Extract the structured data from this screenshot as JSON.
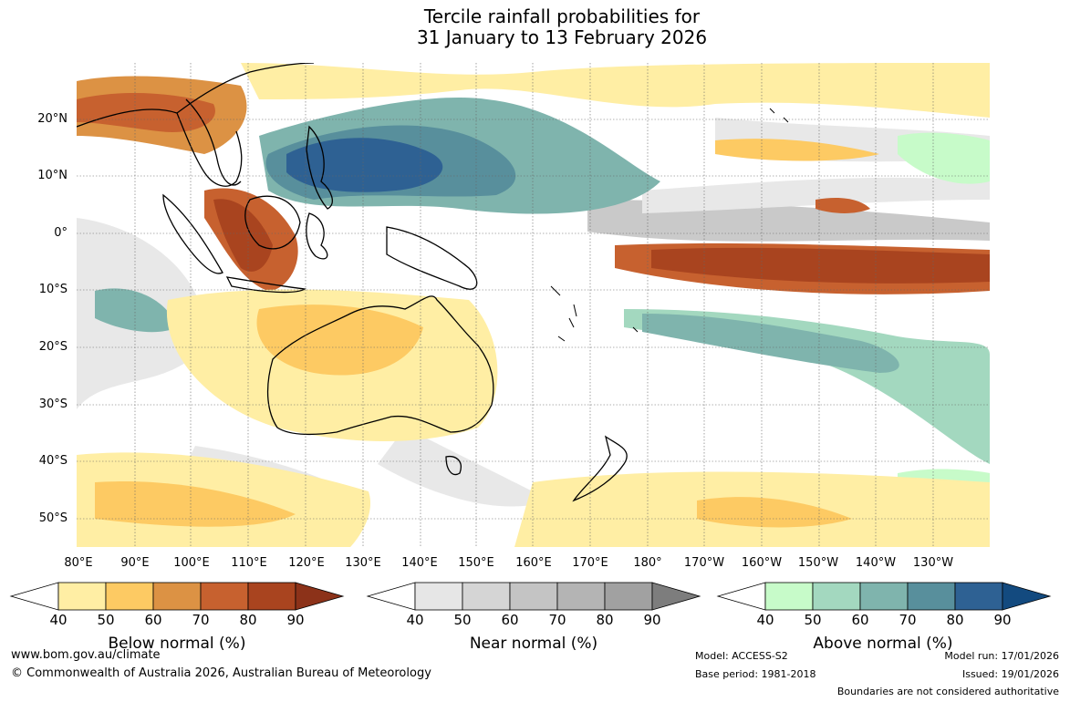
{
  "title": {
    "line1": "Tercile rainfall probabilities for",
    "line2": "31 January to 13 February 2026"
  },
  "lat_labels": [
    "20°N",
    "10°N",
    "0°",
    "10°S",
    "20°S",
    "30°S",
    "40°S",
    "50°S"
  ],
  "lon_labels": [
    "80°E",
    "90°E",
    "100°E",
    "110°E",
    "120°E",
    "130°E",
    "140°E",
    "150°E",
    "160°E",
    "170°E",
    "180°",
    "170°W",
    "160°W",
    "150°W",
    "140°W",
    "130°W"
  ],
  "legend": {
    "ticks": [
      "40",
      "50",
      "60",
      "70",
      "80",
      "90"
    ],
    "below": {
      "label": "Below normal (%)",
      "colors": [
        "#ffeea4",
        "#fdca63",
        "#dc9244",
        "#c7612f",
        "#a9441f",
        "#8c3219"
      ]
    },
    "near": {
      "label": "Near normal (%)",
      "colors": [
        "#e6e6e6",
        "#d5d5d5",
        "#c4c4c4",
        "#b4b4b4",
        "#a1a1a1",
        "#7d7d7d"
      ]
    },
    "above": {
      "label": "Above normal (%)",
      "colors": [
        "#c7fbc9",
        "#a3d8bf",
        "#7fb4ad",
        "#588f9c",
        "#2e6193",
        "#134a7f"
      ]
    }
  },
  "footer": {
    "url": "www.bom.gov.au/climate",
    "copyright": "© Commonwealth of Australia 2026, Australian Bureau of Meteorology",
    "model": "Model: ACCESS-S2",
    "base_period": "Base period: 1981-2018",
    "model_run": "Model run: 17/01/2026",
    "issued": "Issued: 19/01/2026",
    "boundaries": "Boundaries are not considered authoritative"
  }
}
